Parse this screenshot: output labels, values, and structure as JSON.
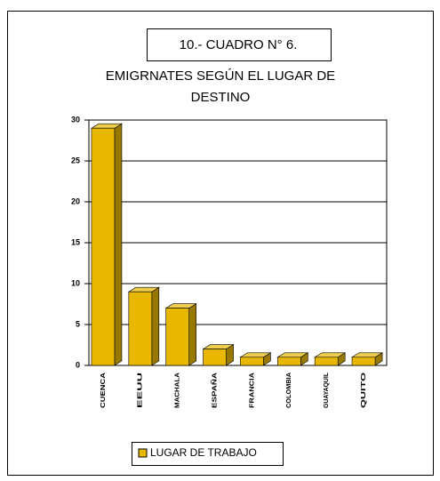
{
  "chart_data": {
    "type": "bar3d",
    "caption": "10.- CUADRO N° 6.",
    "title": [
      "EMIGRNATES SEGÚN EL LUGAR DE",
      "DESTINO"
    ],
    "categories": [
      "CUENCA",
      "EEUU",
      "MACHALA",
      "ESPAÑA",
      "FRANCIA",
      "COLOMBIA",
      "GUAYAQUIL",
      "QUITO"
    ],
    "series": [
      {
        "name": "LUGAR DE TRABAJO",
        "color": "#e8b800",
        "values": [
          29,
          9,
          7,
          2,
          1,
          1,
          1,
          1
        ]
      }
    ],
    "ylim": [
      0,
      30
    ],
    "yticks": [
      0,
      5,
      10,
      15,
      20,
      25,
      30
    ],
    "grid": true,
    "legend": "bottom"
  }
}
